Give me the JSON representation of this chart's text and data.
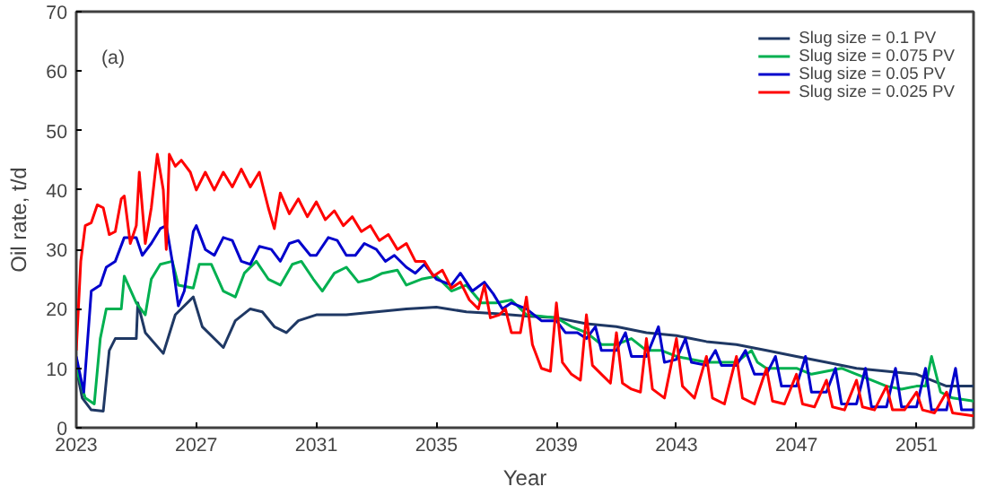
{
  "chart_data": {
    "type": "line",
    "xlabel": "Year",
    "ylabel": "Oil rate, t/d",
    "annotations": [
      "(a)"
    ],
    "xlim": [
      2023,
      2052.9
    ],
    "xticks": [
      2023,
      2027,
      2031,
      2035,
      2039,
      2043,
      2047,
      2051
    ],
    "ylim": [
      0,
      70
    ],
    "yticks": [
      0,
      10,
      20,
      30,
      40,
      50,
      60,
      70
    ],
    "grid": false,
    "legend": "top right",
    "line_style": "solid",
    "marker": "none",
    "series": [
      {
        "name": "Slug size = 0.1 PV",
        "color": "#1f3864",
        "x": [
          2023,
          2023.2,
          2023.5,
          2023.9,
          2024.1,
          2024.3,
          2025.0,
          2025.05,
          2025.3,
          2025.9,
          2026.3,
          2026.9,
          2027.2,
          2027.9,
          2028.3,
          2028.8,
          2029.2,
          2029.6,
          2030.0,
          2030.4,
          2031,
          2032,
          2033,
          2034,
          2035,
          2036,
          2037,
          2038,
          2039,
          2040,
          2041,
          2042,
          2043,
          2044,
          2045,
          2046,
          2047,
          2048,
          2049,
          2050,
          2051,
          2052,
          2052.9
        ],
        "values": [
          10,
          5,
          3,
          2.8,
          13,
          15,
          15,
          21,
          16,
          12.5,
          19,
          22,
          17,
          13.5,
          18,
          20,
          19.5,
          17,
          16,
          18,
          19,
          19,
          19.5,
          20,
          20.3,
          19.5,
          19.2,
          18.8,
          18.5,
          17.5,
          17,
          16,
          15.5,
          14.5,
          14,
          13,
          12,
          11,
          10,
          9.5,
          9,
          7,
          7
        ]
      },
      {
        "name": "Slug size = 0.075 PV",
        "color": "#00b050",
        "x": [
          2023,
          2023.3,
          2023.6,
          2023.8,
          2024.0,
          2024.5,
          2024.6,
          2025.0,
          2025.3,
          2025.5,
          2025.8,
          2026.2,
          2026.4,
          2026.9,
          2027.1,
          2027.5,
          2027.9,
          2028.3,
          2028.6,
          2029.0,
          2029.4,
          2029.8,
          2030.2,
          2030.5,
          2030.9,
          2031.2,
          2031.6,
          2032.0,
          2032.4,
          2032.8,
          2033.2,
          2033.7,
          2034.0,
          2034.5,
          2035,
          2035.5,
          2036,
          2036.5,
          2037,
          2037.5,
          2038,
          2039,
          2039.5,
          2040,
          2040.5,
          2041,
          2041.5,
          2042,
          2042.5,
          2043,
          2043.5,
          2044,
          2044.5,
          2045,
          2045.5,
          2045.7,
          2046,
          2046.5,
          2047,
          2047.5,
          2048,
          2048.5,
          2049,
          2049.5,
          2050,
          2050.5,
          2051,
          2051.3,
          2051.5,
          2051.8,
          2052.2,
          2052.9
        ],
        "values": [
          10,
          5,
          4,
          15,
          20,
          20,
          25.5,
          21,
          19,
          25,
          27.5,
          28,
          24,
          23.5,
          27.5,
          27.5,
          23,
          22,
          26,
          28,
          25,
          24,
          27.5,
          28,
          25,
          23,
          26,
          27,
          24.5,
          25,
          26,
          26.5,
          24,
          25,
          25.5,
          23,
          24,
          21,
          21,
          21.5,
          19,
          18.5,
          17,
          16,
          14,
          14,
          15,
          13,
          13,
          12,
          11.5,
          11,
          11,
          11,
          13,
          11,
          10,
          10,
          10,
          9,
          9.5,
          10,
          9,
          8,
          7,
          6.5,
          7,
          7,
          12,
          6,
          5,
          4.5
        ]
      },
      {
        "name": "Slug size = 0.05 PV",
        "color": "#0000cc",
        "x": [
          2023,
          2023.25,
          2023.5,
          2023.8,
          2024.0,
          2024.3,
          2024.6,
          2025.0,
          2025.2,
          2025.5,
          2025.8,
          2026.0,
          2026.2,
          2026.4,
          2026.6,
          2026.9,
          2027.0,
          2027.3,
          2027.6,
          2027.9,
          2028.2,
          2028.5,
          2028.8,
          2029.1,
          2029.5,
          2029.8,
          2030.1,
          2030.4,
          2030.8,
          2031.0,
          2031.4,
          2031.7,
          2032.0,
          2032.3,
          2032.6,
          2033.0,
          2033.3,
          2033.6,
          2034.0,
          2034.3,
          2034.6,
          2035,
          2035.5,
          2035.8,
          2036.2,
          2036.6,
          2036.9,
          2037.2,
          2037.5,
          2038,
          2038.5,
          2039,
          2039.3,
          2039.7,
          2040,
          2040.3,
          2040.5,
          2041,
          2041.3,
          2041.5,
          2042,
          2042.4,
          2042.6,
          2043,
          2043.3,
          2043.5,
          2044,
          2044.3,
          2044.5,
          2045,
          2045.3,
          2045.6,
          2046,
          2046.3,
          2046.5,
          2047,
          2047.3,
          2047.5,
          2048,
          2048.3,
          2048.5,
          2049,
          2049.3,
          2049.5,
          2050,
          2050.3,
          2050.5,
          2051,
          2051.3,
          2051.5,
          2052,
          2052.3,
          2052.5,
          2052.9
        ],
        "values": [
          12,
          6,
          23,
          24,
          27,
          28,
          32,
          32,
          29,
          31,
          33.5,
          34,
          28,
          20.5,
          23,
          33,
          34,
          30,
          29,
          32,
          31.5,
          28,
          27.5,
          30.5,
          30,
          28,
          31,
          31.5,
          29,
          29,
          32,
          31.5,
          29,
          29,
          31,
          30,
          28,
          29,
          27,
          26,
          27.5,
          25,
          24,
          26,
          23,
          24.5,
          22.5,
          20,
          21,
          20,
          18,
          18,
          16,
          16,
          15,
          17,
          13,
          13,
          16,
          12,
          12,
          17,
          11,
          11.5,
          15,
          11,
          10.5,
          13,
          10.5,
          10.5,
          13,
          9,
          9,
          12,
          7,
          7,
          12,
          6,
          6,
          10,
          4,
          4,
          10,
          3.5,
          3.5,
          10,
          3.5,
          3.5,
          10,
          3,
          3,
          10,
          3,
          3
        ]
      },
      {
        "name": "Slug size = 0.025 PV",
        "color": "#ff0000",
        "x": [
          2023,
          2023.15,
          2023.3,
          2023.5,
          2023.7,
          2023.9,
          2024.1,
          2024.3,
          2024.5,
          2024.6,
          2024.8,
          2025.0,
          2025.1,
          2025.3,
          2025.5,
          2025.7,
          2025.9,
          2026.0,
          2026.1,
          2026.3,
          2026.5,
          2026.8,
          2027.0,
          2027.3,
          2027.6,
          2027.9,
          2028.2,
          2028.5,
          2028.8,
          2029.1,
          2029.4,
          2029.6,
          2029.8,
          2030.1,
          2030.4,
          2030.7,
          2031.0,
          2031.3,
          2031.6,
          2031.9,
          2032.2,
          2032.5,
          2032.8,
          2033.1,
          2033.4,
          2033.7,
          2034.0,
          2034.3,
          2034.6,
          2034.9,
          2035.2,
          2035.5,
          2035.8,
          2036.1,
          2036.4,
          2036.6,
          2036.8,
          2037.1,
          2037.3,
          2037.5,
          2037.8,
          2038.0,
          2038.2,
          2038.5,
          2038.8,
          2039.0,
          2039.2,
          2039.5,
          2039.8,
          2040.0,
          2040.2,
          2040.5,
          2040.8,
          2041.0,
          2041.2,
          2041.5,
          2041.8,
          2042.0,
          2042.2,
          2042.6,
          2043.0,
          2043.2,
          2043.6,
          2044.0,
          2044.2,
          2044.6,
          2045.0,
          2045.2,
          2045.6,
          2046.0,
          2046.2,
          2046.6,
          2047.0,
          2047.2,
          2047.6,
          2048.0,
          2048.2,
          2048.6,
          2049.0,
          2049.2,
          2049.6,
          2050.0,
          2050.2,
          2050.6,
          2051.0,
          2051.2,
          2051.6,
          2052.0,
          2052.2,
          2052.9
        ],
        "values": [
          13,
          28,
          34,
          34.5,
          37.5,
          37,
          32.5,
          33,
          38.5,
          39,
          31,
          34,
          43,
          31,
          37,
          46,
          40,
          30,
          46,
          44,
          45,
          43,
          40,
          43,
          40,
          43,
          40.5,
          43.5,
          40.5,
          43,
          37,
          33.5,
          39.5,
          36,
          38.5,
          35.5,
          38,
          35,
          36.5,
          34,
          35.5,
          33,
          34,
          31.5,
          32.5,
          30,
          31,
          28,
          28,
          25.5,
          26.5,
          23.5,
          24.5,
          21.5,
          20,
          24,
          18.5,
          19,
          20,
          16,
          16,
          22,
          14,
          10,
          9.5,
          21,
          11,
          9,
          8,
          19,
          10.5,
          9,
          7.5,
          16,
          7.5,
          6.5,
          6,
          15,
          6.5,
          5,
          15,
          7,
          5,
          12,
          5,
          4,
          12,
          5,
          4,
          10,
          4.5,
          4,
          9,
          4,
          3.5,
          8,
          3.5,
          3,
          8,
          3.5,
          3,
          7,
          3,
          3,
          6,
          3,
          2.5,
          6,
          2.5,
          2
        ]
      }
    ]
  }
}
